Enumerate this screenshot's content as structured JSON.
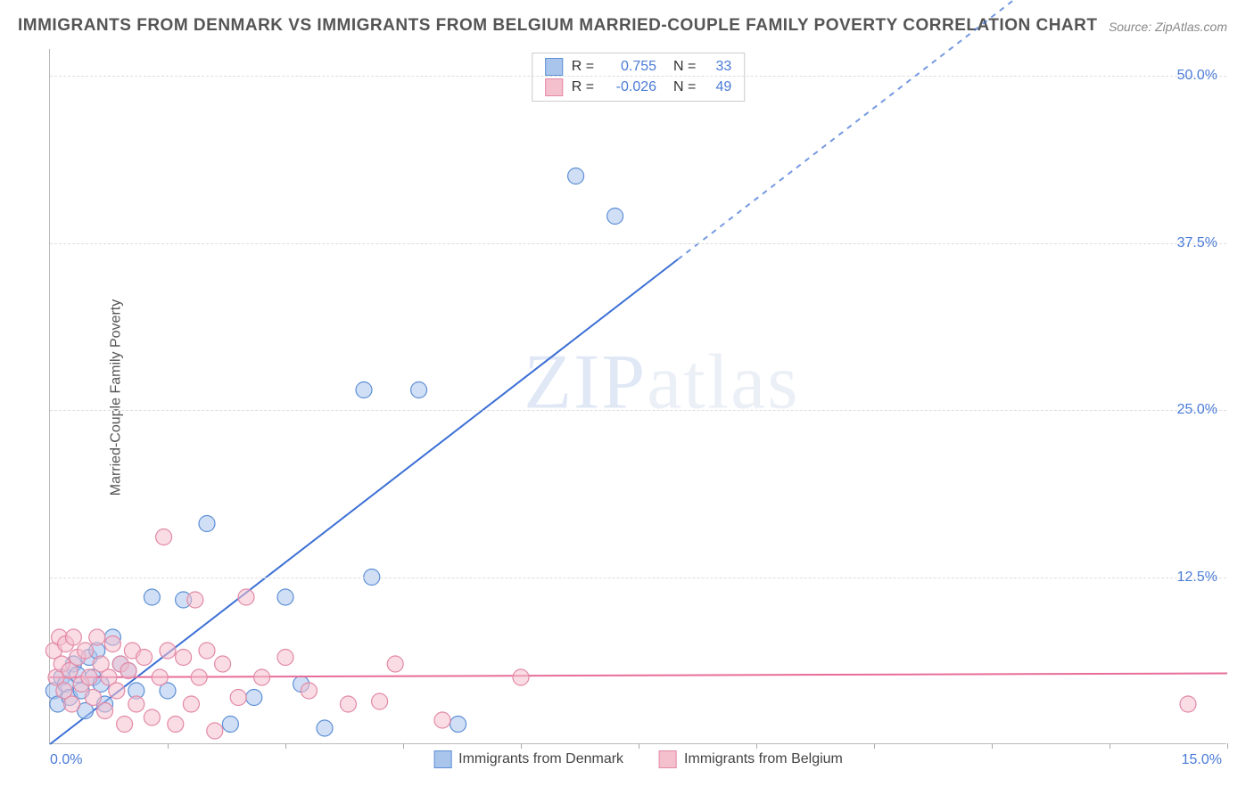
{
  "title": "IMMIGRANTS FROM DENMARK VS IMMIGRANTS FROM BELGIUM MARRIED-COUPLE FAMILY POVERTY CORRELATION CHART",
  "source": "Source: ZipAtlas.com",
  "ylabel": "Married-Couple Family Poverty",
  "watermark_a": "ZIP",
  "watermark_b": "atlas",
  "chart": {
    "type": "scatter",
    "xlim": [
      0,
      15
    ],
    "ylim": [
      0,
      52
    ],
    "x_origin_label": "0.0%",
    "x_max_label": "15.0%",
    "y_ticks": [
      {
        "v": 12.5,
        "label": "12.5%"
      },
      {
        "v": 25.0,
        "label": "25.0%"
      },
      {
        "v": 37.5,
        "label": "37.5%"
      },
      {
        "v": 50.0,
        "label": "50.0%"
      }
    ],
    "x_ticks": [
      1.5,
      3.0,
      4.5,
      6.0,
      7.5,
      9.0,
      10.5,
      12.0,
      13.5,
      15.0
    ],
    "background_color": "#ffffff",
    "grid_color": "#dddddd",
    "marker_radius": 9,
    "marker_opacity": 0.55,
    "series": [
      {
        "name": "Immigrants from Denmark",
        "fill": "#a9c5ec",
        "stroke": "#5d8fd6",
        "R": "0.755",
        "N": "33",
        "trend": {
          "x1": 0,
          "y1": 0,
          "x2": 15,
          "y2": 68,
          "solid_until_x": 8.0,
          "color": "#3b6fd4",
          "width": 2
        },
        "points": [
          [
            0.05,
            4.0
          ],
          [
            0.1,
            3.0
          ],
          [
            0.15,
            5.0
          ],
          [
            0.2,
            4.5
          ],
          [
            0.25,
            3.5
          ],
          [
            0.3,
            6.0
          ],
          [
            0.35,
            5.2
          ],
          [
            0.4,
            4.0
          ],
          [
            0.45,
            2.5
          ],
          [
            0.5,
            6.5
          ],
          [
            0.55,
            5.0
          ],
          [
            0.6,
            7.0
          ],
          [
            0.65,
            4.5
          ],
          [
            0.7,
            3.0
          ],
          [
            0.8,
            8.0
          ],
          [
            0.9,
            6.0
          ],
          [
            1.0,
            5.5
          ],
          [
            1.1,
            4.0
          ],
          [
            1.3,
            11.0
          ],
          [
            1.5,
            4.0
          ],
          [
            1.7,
            10.8
          ],
          [
            2.0,
            16.5
          ],
          [
            2.3,
            1.5
          ],
          [
            2.6,
            3.5
          ],
          [
            3.0,
            11.0
          ],
          [
            3.2,
            4.5
          ],
          [
            3.5,
            1.2
          ],
          [
            4.0,
            26.5
          ],
          [
            4.1,
            12.5
          ],
          [
            4.7,
            26.5
          ],
          [
            5.2,
            1.5
          ],
          [
            6.7,
            42.5
          ],
          [
            7.2,
            39.5
          ]
        ]
      },
      {
        "name": "Immigrants from Belgium",
        "fill": "#f4c0cd",
        "stroke": "#e389a6",
        "R": "-0.026",
        "N": "49",
        "trend": {
          "x1": 0,
          "y1": 5.0,
          "x2": 15,
          "y2": 5.3,
          "solid_until_x": 15,
          "color": "#e86d9a",
          "width": 2
        },
        "points": [
          [
            0.05,
            7.0
          ],
          [
            0.08,
            5.0
          ],
          [
            0.12,
            8.0
          ],
          [
            0.15,
            6.0
          ],
          [
            0.18,
            4.0
          ],
          [
            0.2,
            7.5
          ],
          [
            0.25,
            5.5
          ],
          [
            0.28,
            3.0
          ],
          [
            0.3,
            8.0
          ],
          [
            0.35,
            6.5
          ],
          [
            0.4,
            4.5
          ],
          [
            0.45,
            7.0
          ],
          [
            0.5,
            5.0
          ],
          [
            0.55,
            3.5
          ],
          [
            0.6,
            8.0
          ],
          [
            0.65,
            6.0
          ],
          [
            0.7,
            2.5
          ],
          [
            0.75,
            5.0
          ],
          [
            0.8,
            7.5
          ],
          [
            0.85,
            4.0
          ],
          [
            0.9,
            6.0
          ],
          [
            0.95,
            1.5
          ],
          [
            1.0,
            5.5
          ],
          [
            1.05,
            7.0
          ],
          [
            1.1,
            3.0
          ],
          [
            1.2,
            6.5
          ],
          [
            1.3,
            2.0
          ],
          [
            1.4,
            5.0
          ],
          [
            1.45,
            15.5
          ],
          [
            1.5,
            7.0
          ],
          [
            1.6,
            1.5
          ],
          [
            1.7,
            6.5
          ],
          [
            1.8,
            3.0
          ],
          [
            1.85,
            10.8
          ],
          [
            1.9,
            5.0
          ],
          [
            2.0,
            7.0
          ],
          [
            2.1,
            1.0
          ],
          [
            2.2,
            6.0
          ],
          [
            2.4,
            3.5
          ],
          [
            2.5,
            11.0
          ],
          [
            2.7,
            5.0
          ],
          [
            3.0,
            6.5
          ],
          [
            3.3,
            4.0
          ],
          [
            3.8,
            3.0
          ],
          [
            4.2,
            3.2
          ],
          [
            4.4,
            6.0
          ],
          [
            5.0,
            1.8
          ],
          [
            6.0,
            5.0
          ],
          [
            14.5,
            3.0
          ]
        ]
      }
    ],
    "legend_bottom": [
      {
        "label": "Immigrants from Denmark",
        "fill": "#a9c5ec",
        "stroke": "#5d8fd6"
      },
      {
        "label": "Immigrants from Belgium",
        "fill": "#f4c0cd",
        "stroke": "#e389a6"
      }
    ]
  }
}
